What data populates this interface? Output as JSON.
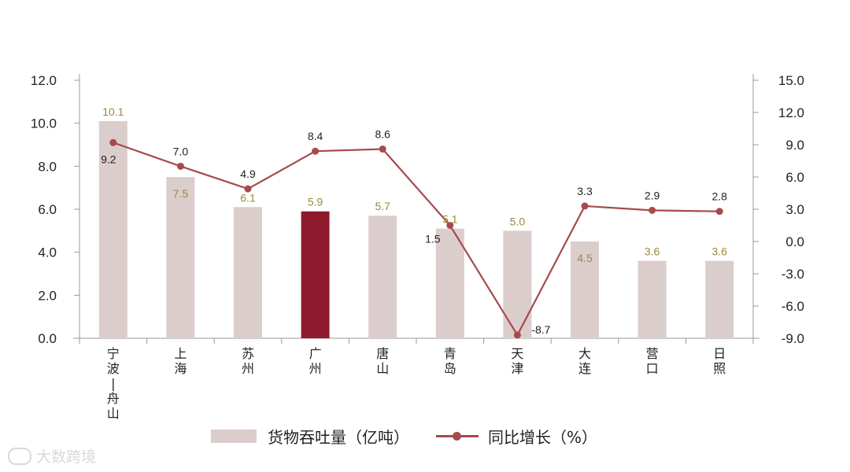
{
  "chart_data": {
    "type": "bar+line",
    "categories": [
      "宁波-舟山",
      "上海",
      "苏州",
      "广州",
      "唐山",
      "青岛",
      "天津",
      "大连",
      "营口",
      "日照"
    ],
    "series": [
      {
        "name": "货物吞吐量（亿吨）",
        "type": "bar",
        "axis": "left",
        "values": [
          10.1,
          7.5,
          6.1,
          5.9,
          5.7,
          5.1,
          5.0,
          4.5,
          3.6,
          3.6
        ],
        "labels": [
          "10.1",
          "7.5",
          "6.1",
          "5.9",
          "5.7",
          "5.1",
          "5.0",
          "4.5",
          "3.6",
          "3.6"
        ]
      },
      {
        "name": "同比增长（%）",
        "type": "line",
        "axis": "right",
        "values": [
          9.2,
          7.0,
          4.9,
          8.4,
          8.6,
          1.5,
          -8.7,
          3.3,
          2.9,
          2.8
        ],
        "labels": [
          "9.2",
          "7.0",
          "4.9",
          "8.4",
          "8.6",
          "1.5",
          "-8.7",
          "3.3",
          "2.9",
          "2.8"
        ]
      }
    ],
    "ylim_left": [
      0,
      12
    ],
    "ylim_right": [
      -9,
      15
    ],
    "left_ticks": [
      "0.0",
      "2.0",
      "4.0",
      "6.0",
      "8.0",
      "10.0",
      "12.0"
    ],
    "right_ticks": [
      "-9.0",
      "-6.0",
      "-3.0",
      "0.0",
      "3.0",
      "6.0",
      "9.0",
      "12.0",
      "15.0"
    ],
    "highlight_category": "广州",
    "grid": false,
    "legend_position": "bottom"
  },
  "colors": {
    "bar": "#dccdcd",
    "bar_highlight": "#8e1a2e",
    "line": "#a64a4e",
    "bar_label": "#9a8a3a",
    "axis": "#999999"
  },
  "legend": {
    "bar_label": "货物吞吐量（亿吨）",
    "line_label": "同比增长（%）"
  },
  "watermark": {
    "text": "大数跨境",
    "icon": "cloud-logo-icon"
  }
}
